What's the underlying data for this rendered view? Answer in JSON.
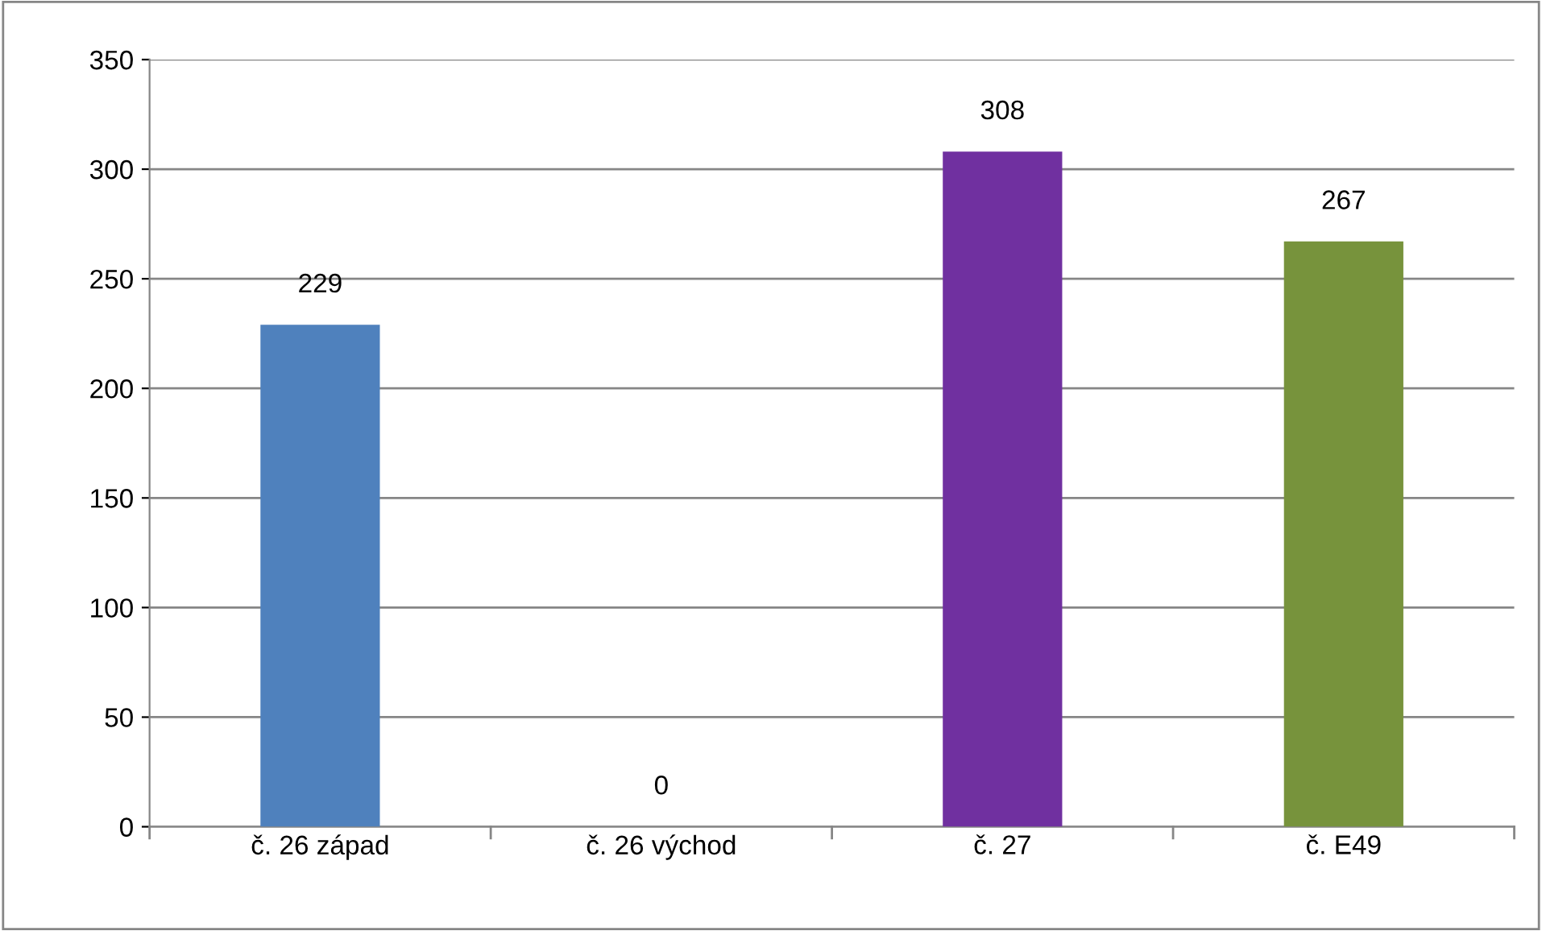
{
  "chart_data": {
    "type": "bar",
    "categories": [
      "č. 26 západ",
      "č. 26 východ",
      "č. 27",
      "č. E49"
    ],
    "values": [
      229,
      0,
      308,
      267
    ],
    "colors": [
      "#4f81bd",
      "#c0504d",
      "#7030a0",
      "#77933c"
    ],
    "ylim": [
      0,
      350
    ],
    "yticks": [
      0,
      50,
      100,
      150,
      200,
      250,
      300,
      350
    ],
    "grid": "y",
    "data_labels": true,
    "legend": false
  }
}
